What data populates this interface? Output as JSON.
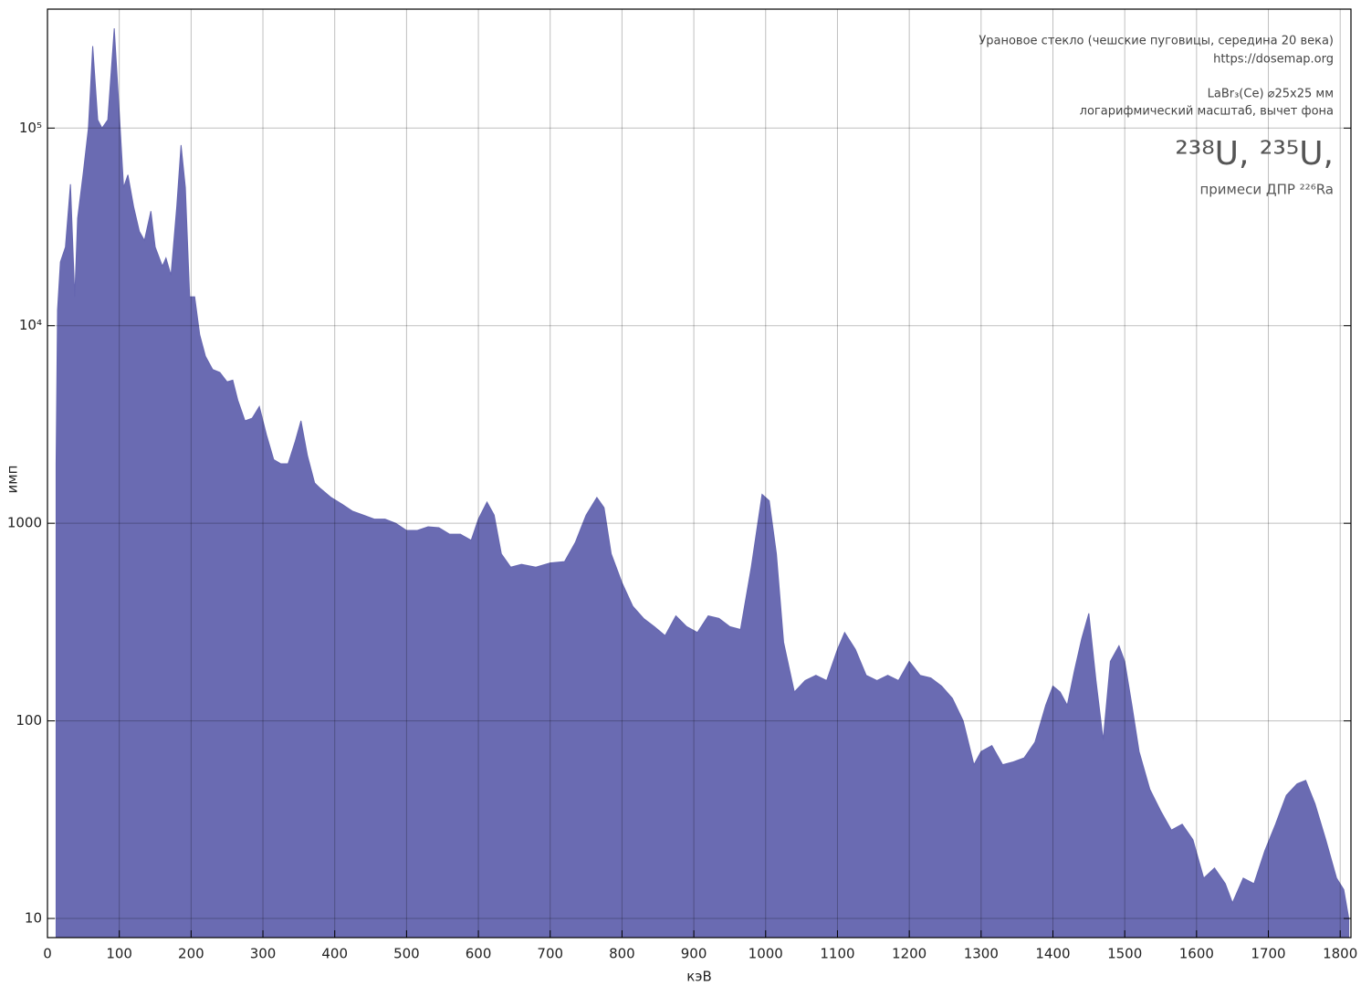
{
  "chart_data": {
    "type": "area",
    "xlabel": "кэВ",
    "ylabel": "имп",
    "annotations": [
      "Урановое стекло (чешские пуговицы, середина 20 века)",
      "https://dosemap.org",
      "LaBr₃(Ce) ⌀25x25 мм",
      "логарифмический масштаб, вычет фона",
      "²³⁸U, ²³⁵U,",
      "примеси ДПР ²²⁶Ra"
    ],
    "color": "#6566b0",
    "ylog": true,
    "grid": true,
    "xlim": [
      0,
      1815
    ],
    "ylim": [
      8,
      400000
    ],
    "xticks": [
      0,
      100,
      200,
      300,
      400,
      500,
      600,
      700,
      800,
      900,
      1000,
      1100,
      1200,
      1300,
      1400,
      1500,
      1600,
      1700,
      1800
    ],
    "yticks": [
      10,
      100,
      1000,
      {
        "value": 10000,
        "label": "10⁴"
      },
      {
        "value": 100000,
        "label": "10⁵"
      }
    ],
    "x": [
      12,
      14,
      18,
      25,
      32,
      38,
      42,
      50,
      57,
      63,
      70,
      76,
      84,
      93,
      100,
      106,
      112,
      120,
      128,
      135,
      144,
      150,
      160,
      165,
      172,
      180,
      186,
      192,
      198,
      205,
      212,
      220,
      230,
      240,
      250,
      258,
      265,
      275,
      285,
      295,
      305,
      315,
      325,
      335,
      345,
      353,
      362,
      372,
      380,
      395,
      410,
      425,
      440,
      455,
      470,
      485,
      500,
      515,
      530,
      545,
      560,
      575,
      590,
      600,
      612,
      622,
      632,
      645,
      660,
      680,
      700,
      720,
      735,
      750,
      765,
      775,
      785,
      800,
      815,
      830,
      845,
      860,
      875,
      890,
      905,
      920,
      935,
      950,
      965,
      980,
      995,
      1005,
      1015,
      1025,
      1040,
      1055,
      1070,
      1085,
      1100,
      1110,
      1125,
      1140,
      1155,
      1170,
      1185,
      1200,
      1215,
      1230,
      1245,
      1260,
      1275,
      1290,
      1300,
      1315,
      1330,
      1345,
      1360,
      1375,
      1390,
      1400,
      1410,
      1420,
      1430,
      1440,
      1450,
      1460,
      1470,
      1480,
      1492,
      1500,
      1510,
      1520,
      1535,
      1550,
      1565,
      1580,
      1595,
      1610,
      1625,
      1640,
      1650,
      1665,
      1680,
      1695,
      1710,
      1725,
      1740,
      1752,
      1765,
      1780,
      1795,
      1805,
      1812
    ],
    "values": [
      2000,
      12000,
      21000,
      25000,
      52000,
      14000,
      35000,
      60000,
      100000,
      260000,
      110000,
      100000,
      110000,
      320000,
      120000,
      50000,
      58000,
      40000,
      30000,
      27000,
      38000,
      25000,
      20000,
      22000,
      18000,
      40000,
      82000,
      50000,
      14000,
      14000,
      9000,
      7000,
      6000,
      5800,
      5200,
      5300,
      4200,
      3300,
      3400,
      3900,
      2800,
      2100,
      2000,
      2000,
      2600,
      3300,
      2200,
      1600,
      1500,
      1350,
      1250,
      1150,
      1100,
      1050,
      1050,
      1000,
      920,
      920,
      960,
      950,
      880,
      880,
      820,
      1050,
      1280,
      1100,
      700,
      600,
      620,
      600,
      630,
      640,
      800,
      1100,
      1350,
      1200,
      700,
      500,
      380,
      330,
      300,
      270,
      340,
      300,
      280,
      340,
      330,
      300,
      290,
      600,
      1400,
      1300,
      700,
      250,
      140,
      160,
      170,
      160,
      230,
      280,
      230,
      170,
      160,
      170,
      160,
      200,
      170,
      165,
      150,
      130,
      100,
      60,
      70,
      75,
      60,
      62,
      65,
      78,
      120,
      150,
      140,
      120,
      180,
      260,
      350,
      160,
      80,
      200,
      240,
      200,
      120,
      70,
      45,
      35,
      28,
      30,
      25,
      16,
      18,
      15,
      12,
      16,
      15,
      22,
      30,
      42,
      48,
      50,
      38,
      25,
      16,
      14,
      10
    ]
  }
}
